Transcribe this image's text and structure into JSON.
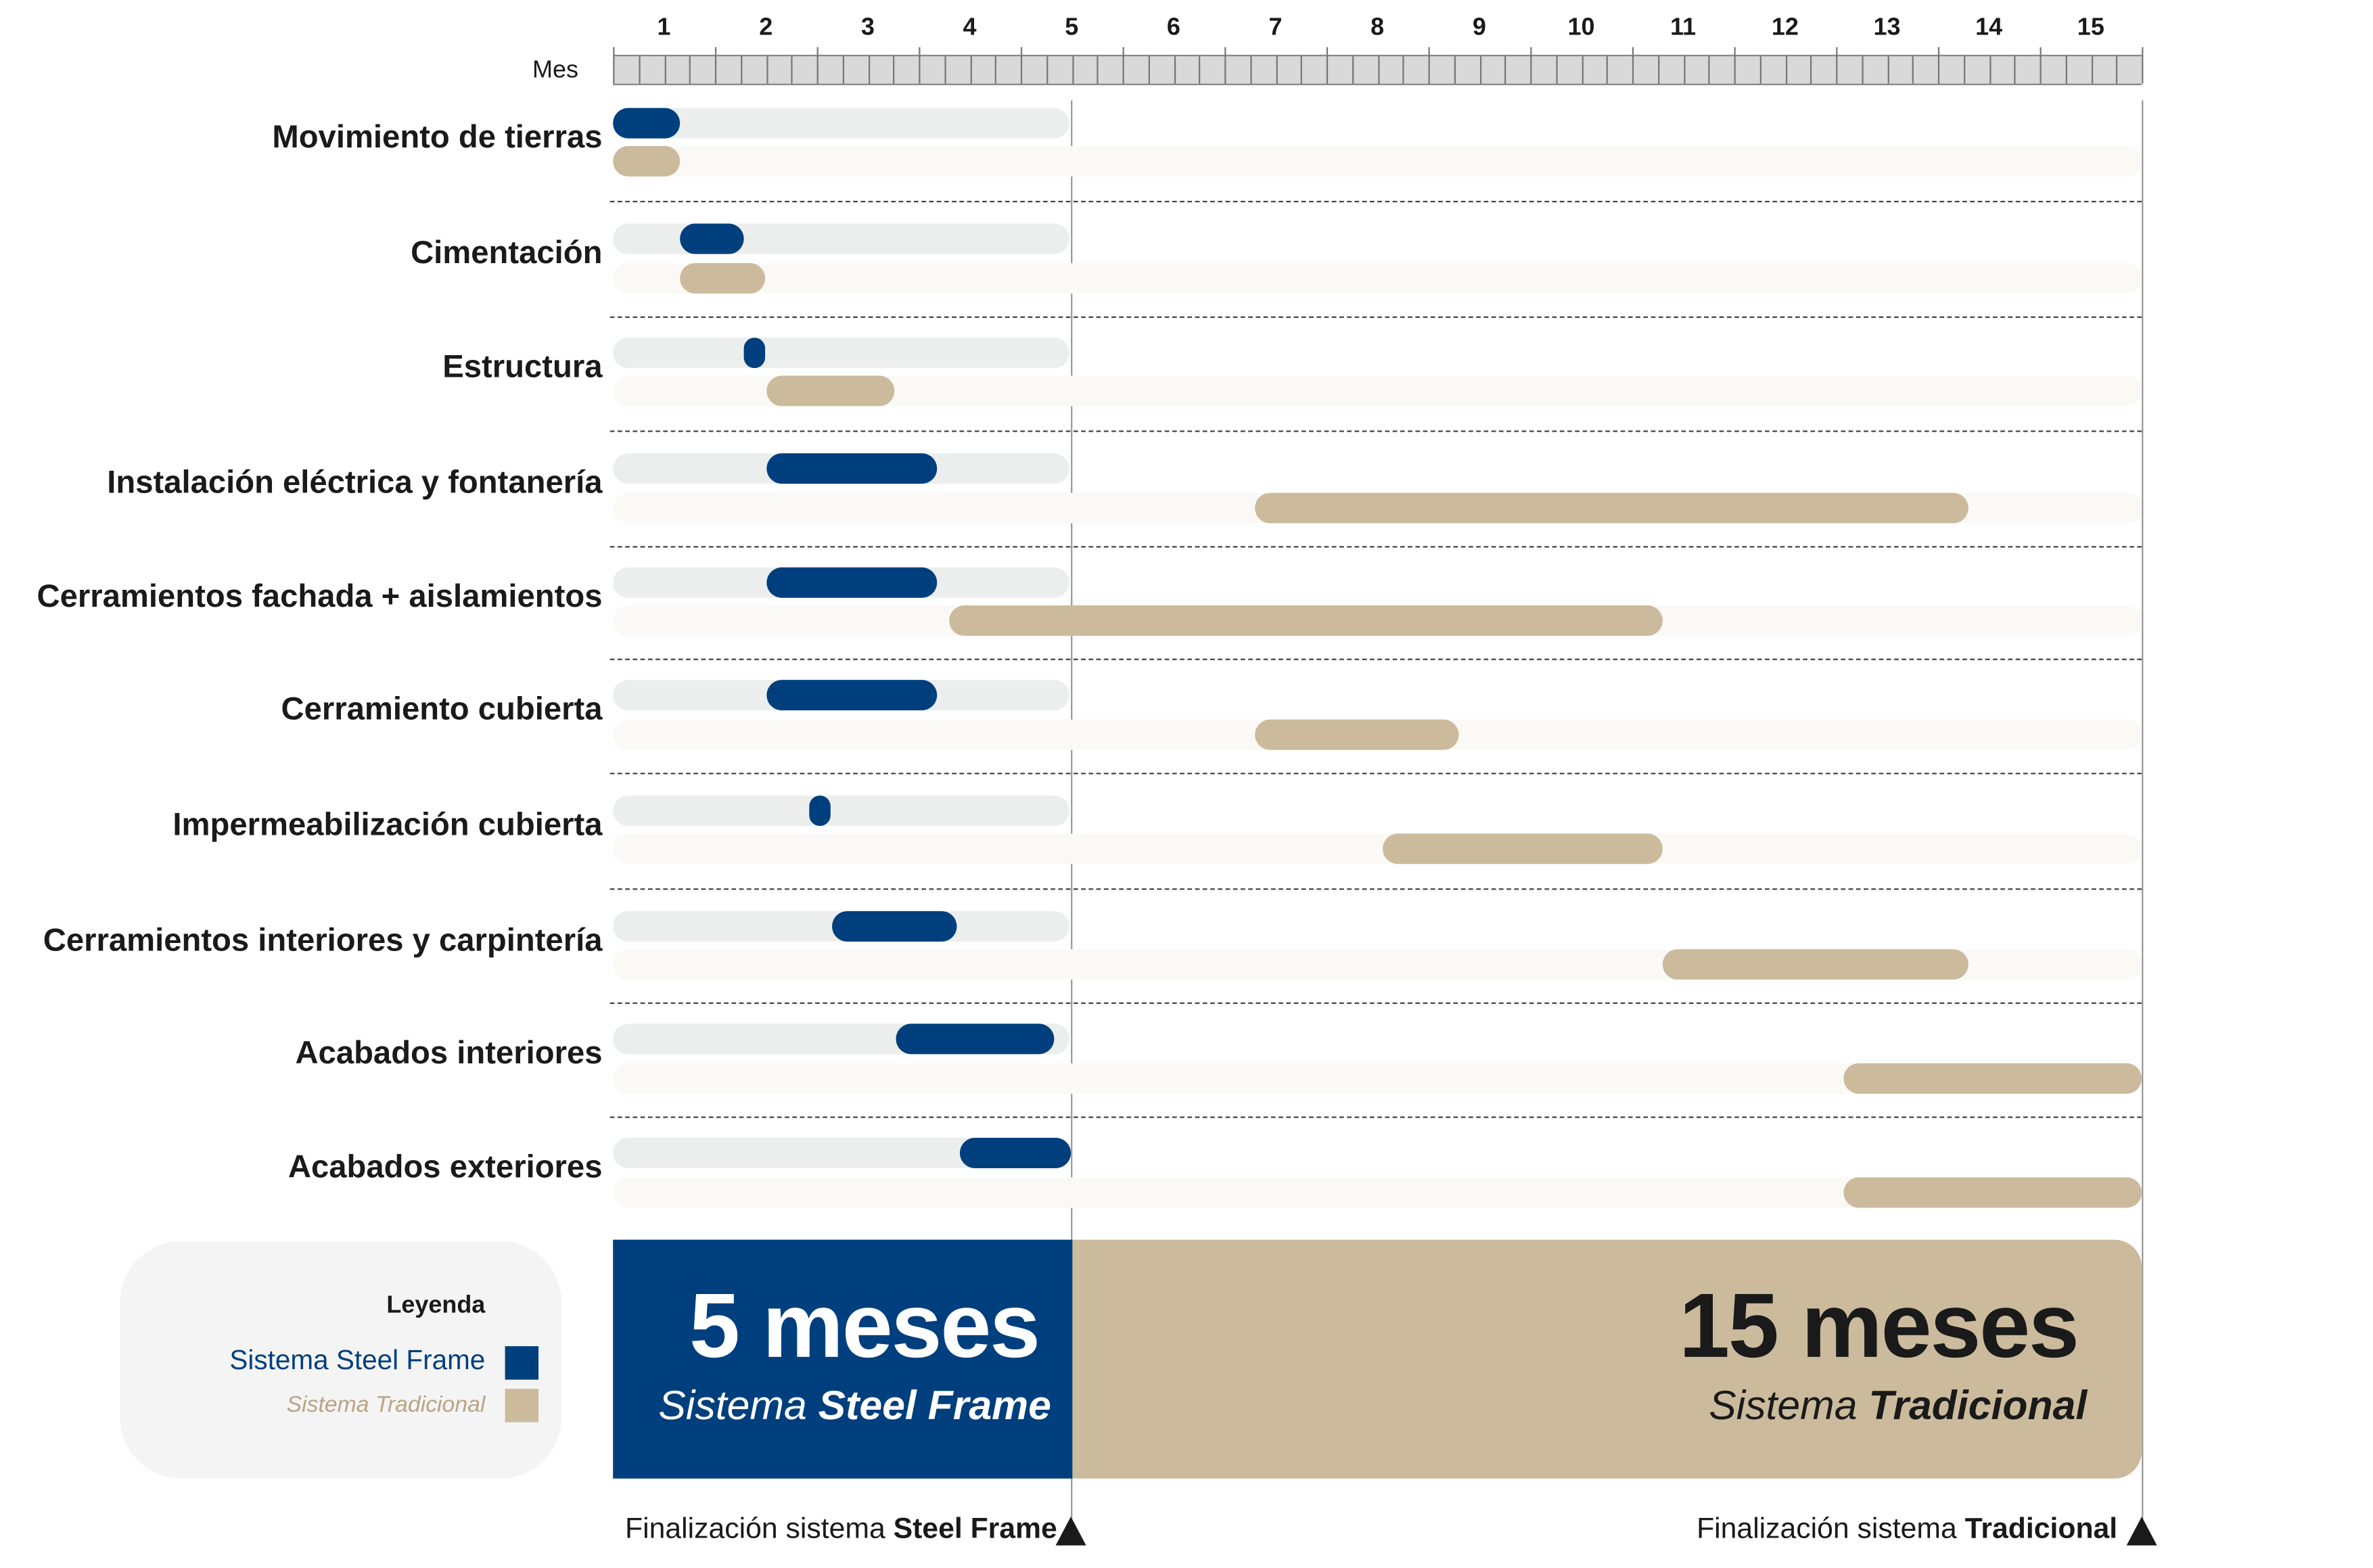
{
  "chart_data": {
    "type": "bar",
    "orientation": "horizontal-gantt",
    "axis_label": "Mes",
    "months": [
      "1",
      "2",
      "3",
      "4",
      "5",
      "6",
      "7",
      "8",
      "9",
      "10",
      "11",
      "12",
      "13",
      "14",
      "15"
    ],
    "xlim": [
      0,
      15
    ],
    "series": [
      {
        "name": "Sistema Steel Frame",
        "color": "#003f7d"
      },
      {
        "name": "Sistema Tradicional",
        "color": "#cbbb9c"
      }
    ],
    "tasks": [
      {
        "label": "Movimiento de tierras",
        "steel": [
          0,
          0.66
        ],
        "trad": [
          0,
          0.66
        ]
      },
      {
        "label": "Cimentación",
        "steel": [
          0.66,
          1.28
        ],
        "trad": [
          0.66,
          1.5
        ]
      },
      {
        "label": "Estructura",
        "steel": [
          1.28,
          1.5
        ],
        "trad": [
          1.5,
          2.76
        ]
      },
      {
        "label": "Instalación eléctrica y fontanería",
        "steel": [
          1.5,
          3.18
        ],
        "trad": [
          6.3,
          13.3
        ]
      },
      {
        "label": "Cerramientos fachada + aislamientos",
        "steel": [
          1.5,
          3.18
        ],
        "trad": [
          3.3,
          10.3
        ]
      },
      {
        "label": "Cerramiento cubierta",
        "steel": [
          1.5,
          3.18
        ],
        "trad": [
          6.3,
          8.3
        ]
      },
      {
        "label": "Impermeabilización cubierta",
        "steel": [
          1.93,
          2.13
        ],
        "trad": [
          7.55,
          10.3
        ]
      },
      {
        "label": "Cerramientos interiores y carpintería",
        "steel": [
          2.15,
          3.37
        ],
        "trad": [
          10.3,
          13.3
        ]
      },
      {
        "label": "Acabados interiores",
        "steel": [
          2.78,
          4.33
        ],
        "trad": [
          12.07,
          15
        ]
      },
      {
        "label": "Acabados exteriores",
        "steel": [
          3.4,
          4.5
        ],
        "trad": [
          12.07,
          15
        ]
      }
    ],
    "steel_total_months": 4.5,
    "trad_total_months": 15
  },
  "legend": {
    "title": "Leyenda",
    "steel": "Sistema Steel Frame",
    "trad": "Sistema Tradicional"
  },
  "summary": {
    "steel_big": "5 meses",
    "steel_sub_a": "Sistema ",
    "steel_sub_b": "Steel Frame",
    "trad_big": "15 meses",
    "trad_sub_a": "Sistema ",
    "trad_sub_b": "Tradicional"
  },
  "footer": {
    "steel_a": "Finalización sistema ",
    "steel_b": "Steel Frame",
    "trad_a": "Finalización sistema ",
    "trad_b": "Tradicional"
  }
}
